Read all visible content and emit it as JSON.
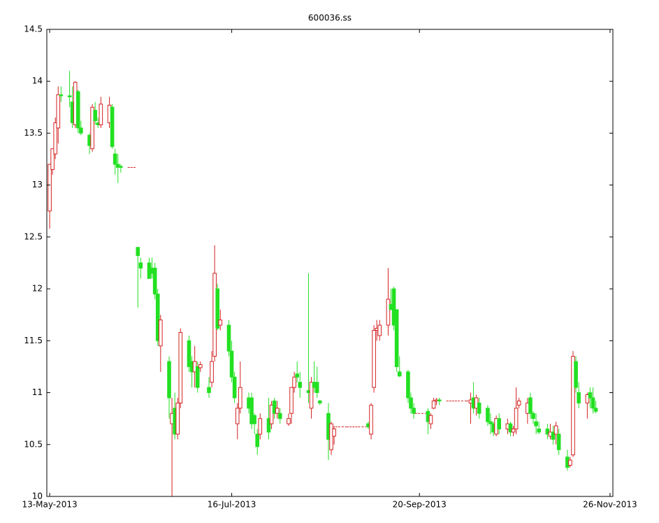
{
  "chart_data": {
    "type": "candlestick",
    "title": "600036.ss",
    "up_color": "#d42020",
    "down_color": "#22e022",
    "xlim": [
      "2013-05-12",
      "2013-11-27"
    ],
    "xticks": [
      {
        "value": "2013-05-13",
        "label": "13-May-2013"
      },
      {
        "value": "2013-07-16",
        "label": "16-Jul-2013"
      },
      {
        "value": "2013-09-20",
        "label": "20-Sep-2013"
      },
      {
        "value": "2013-11-26",
        "label": "26-Nov-2013"
      }
    ],
    "ylim": [
      10,
      14.5
    ],
    "yticks": [
      10,
      10.5,
      11,
      11.5,
      12,
      12.5,
      13,
      13.5,
      14,
      14.5
    ],
    "x": [
      "2013-05-13",
      "2013-05-14",
      "2013-05-15",
      "2013-05-16",
      "2013-05-17",
      "2013-05-20",
      "2013-05-21",
      "2013-05-22",
      "2013-05-23",
      "2013-05-24",
      "2013-05-27",
      "2013-05-28",
      "2013-05-29",
      "2013-05-30",
      "2013-05-31",
      "2013-06-03",
      "2013-06-04",
      "2013-06-05",
      "2013-06-06",
      "2013-06-07",
      "2013-06-10",
      "2013-06-11",
      "2013-06-12",
      "2013-06-13",
      "2013-06-14",
      "2013-06-17",
      "2013-06-18",
      "2013-06-19",
      "2013-06-20",
      "2013-06-21",
      "2013-06-24",
      "2013-06-25",
      "2013-06-26",
      "2013-06-27",
      "2013-06-28",
      "2013-07-01",
      "2013-07-02",
      "2013-07-03",
      "2013-07-04",
      "2013-07-05",
      "2013-07-08",
      "2013-07-09",
      "2013-07-10",
      "2013-07-11",
      "2013-07-12",
      "2013-07-15",
      "2013-07-16",
      "2013-07-17",
      "2013-07-18",
      "2013-07-19",
      "2013-07-22",
      "2013-07-23",
      "2013-07-24",
      "2013-07-25",
      "2013-07-26",
      "2013-07-29",
      "2013-07-30",
      "2013-07-31",
      "2013-08-01",
      "2013-08-02",
      "2013-08-05",
      "2013-08-06",
      "2013-08-07",
      "2013-08-08",
      "2013-08-09",
      "2013-08-12",
      "2013-08-13",
      "2013-08-14",
      "2013-08-15",
      "2013-08-16",
      "2013-08-19",
      "2013-08-20",
      "2013-08-21",
      "2013-08-22",
      "2013-08-23",
      "2013-08-26",
      "2013-08-27",
      "2013-08-28",
      "2013-08-29",
      "2013-08-30",
      "2013-09-02",
      "2013-09-03",
      "2013-09-04",
      "2013-09-05",
      "2013-09-06",
      "2013-09-09",
      "2013-09-10",
      "2013-09-11",
      "2013-09-12",
      "2013-09-13",
      "2013-09-16",
      "2013-09-17",
      "2013-09-18",
      "2013-09-19",
      "2013-09-20",
      "2013-09-23",
      "2013-09-24",
      "2013-09-25",
      "2013-09-26",
      "2013-09-27",
      "2013-09-30",
      "2013-10-01",
      "2013-10-02",
      "2013-10-03",
      "2013-10-04",
      "2013-10-07",
      "2013-10-08",
      "2013-10-09",
      "2013-10-10",
      "2013-10-11",
      "2013-10-14",
      "2013-10-15",
      "2013-10-16",
      "2013-10-17",
      "2013-10-18",
      "2013-10-21",
      "2013-10-22",
      "2013-10-23",
      "2013-10-24",
      "2013-10-25",
      "2013-10-28",
      "2013-10-29",
      "2013-10-30",
      "2013-10-31",
      "2013-11-01",
      "2013-11-04",
      "2013-11-05",
      "2013-11-06",
      "2013-11-07",
      "2013-11-08",
      "2013-11-11",
      "2013-11-12",
      "2013-11-13",
      "2013-11-14",
      "2013-11-15",
      "2013-11-18",
      "2013-11-19",
      "2013-11-20",
      "2013-11-21"
    ],
    "open": [
      12.75,
      13.15,
      13.3,
      13.55,
      13.87,
      13.86,
      13.8,
      13.58,
      13.9,
      13.55,
      13.48,
      13.35,
      13.72,
      13.6,
      13.58,
      13.6,
      13.75,
      13.3,
      13.2,
      13.18,
      13.17,
      13.17,
      13.17,
      12.4,
      12.25,
      12.25,
      12.2,
      12.2,
      11.95,
      11.45,
      11.3,
      10.7,
      10.85,
      10.6,
      10.9,
      11.5,
      11.3,
      11.2,
      11.25,
      11.24,
      11.05,
      11.1,
      11.35,
      12.0,
      11.65,
      11.65,
      11.4,
      11.15,
      10.7,
      10.85,
      10.95,
      10.95,
      10.78,
      10.6,
      10.6,
      10.75,
      10.7,
      10.92,
      10.8,
      10.8,
      10.7,
      10.8,
      11.05,
      11.18,
      11.1,
      11.02,
      10.85,
      11.1,
      11.1,
      10.92,
      10.8,
      10.45,
      10.58,
      10.67,
      10.67,
      10.67,
      10.67,
      10.67,
      10.67,
      10.67,
      10.7,
      10.6,
      11.05,
      11.6,
      11.55,
      11.65,
      11.85,
      12.0,
      11.8,
      11.2,
      11.2,
      10.95,
      10.85,
      10.8,
      10.8,
      10.82,
      10.7,
      10.85,
      10.92,
      10.93,
      10.92,
      10.92,
      10.92,
      10.92,
      10.92,
      10.92,
      10.9,
      10.95,
      10.85,
      10.9,
      10.85,
      10.72,
      10.7,
      10.6,
      10.75,
      10.65,
      10.7,
      10.62,
      10.65,
      10.88,
      10.8,
      10.95,
      10.8,
      10.72,
      10.65,
      10.65,
      10.58,
      10.62,
      10.6,
      10.6,
      10.38,
      10.3,
      10.4,
      11.3,
      11.0,
      10.9,
      11.0,
      10.95,
      10.85
    ],
    "high": [
      13.2,
      13.35,
      13.65,
      13.95,
      13.95,
      14.1,
      13.95,
      14.0,
      13.92,
      13.62,
      13.5,
      13.78,
      13.8,
      13.65,
      13.85,
      13.85,
      13.78,
      13.35,
      13.3,
      13.2,
      13.17,
      13.17,
      13.17,
      12.4,
      12.3,
      12.3,
      12.3,
      12.25,
      12.0,
      11.75,
      11.35,
      10.95,
      11.0,
      10.95,
      11.62,
      11.55,
      11.35,
      11.45,
      11.3,
      11.3,
      11.15,
      11.4,
      12.42,
      12.05,
      11.8,
      11.7,
      11.5,
      11.2,
      10.9,
      11.3,
      11.0,
      11.0,
      10.8,
      10.65,
      10.8,
      10.95,
      10.92,
      10.95,
      10.92,
      10.85,
      10.8,
      11.05,
      11.2,
      11.3,
      11.2,
      12.15,
      11.15,
      11.3,
      11.25,
      10.93,
      10.9,
      10.72,
      10.68,
      10.67,
      10.67,
      10.67,
      10.67,
      10.67,
      10.67,
      10.67,
      10.72,
      10.9,
      11.65,
      11.7,
      11.7,
      12.2,
      12.0,
      12.02,
      11.8,
      11.35,
      11.22,
      11.0,
      10.9,
      10.8,
      10.8,
      10.85,
      10.8,
      10.95,
      10.95,
      10.95,
      10.92,
      10.92,
      10.92,
      10.92,
      10.92,
      10.92,
      11.0,
      11.1,
      10.98,
      10.95,
      10.88,
      10.8,
      10.72,
      10.78,
      10.8,
      10.75,
      10.72,
      10.68,
      11.05,
      10.95,
      10.95,
      11.0,
      10.82,
      10.8,
      10.72,
      10.7,
      10.7,
      10.68,
      10.72,
      10.65,
      10.45,
      10.38,
      11.4,
      11.35,
      11.1,
      11.0,
      11.05,
      11.05,
      10.92
    ],
    "low": [
      12.58,
      13.1,
      13.25,
      13.4,
      13.8,
      13.75,
      13.55,
      13.55,
      13.5,
      13.48,
      13.3,
      13.32,
      13.58,
      13.55,
      13.55,
      13.55,
      13.35,
      13.1,
      13.02,
      13.12,
      13.17,
      13.17,
      13.17,
      11.82,
      12.1,
      12.1,
      12.1,
      11.9,
      11.45,
      11.2,
      10.75,
      10.0,
      10.55,
      10.55,
      10.85,
      11.2,
      11.05,
      11.05,
      11.0,
      11.2,
      10.95,
      11.05,
      11.3,
      11.6,
      11.6,
      11.35,
      11.1,
      10.9,
      10.55,
      10.8,
      10.8,
      10.65,
      10.6,
      10.4,
      10.55,
      10.55,
      10.65,
      10.75,
      10.75,
      10.7,
      10.68,
      10.7,
      11.0,
      11.1,
      10.95,
      10.9,
      10.75,
      11.0,
      10.95,
      10.88,
      10.35,
      10.4,
      10.5,
      10.67,
      10.67,
      10.67,
      10.67,
      10.67,
      10.67,
      10.67,
      10.65,
      10.55,
      11.0,
      11.5,
      11.5,
      11.55,
      11.8,
      11.6,
      11.2,
      11.15,
      10.9,
      10.8,
      10.75,
      10.8,
      10.8,
      10.6,
      10.65,
      10.84,
      10.88,
      10.88,
      10.92,
      10.92,
      10.92,
      10.92,
      10.92,
      10.92,
      10.7,
      10.8,
      10.78,
      10.75,
      10.68,
      10.6,
      10.58,
      10.58,
      10.6,
      10.6,
      10.58,
      10.58,
      10.6,
      10.85,
      10.7,
      10.75,
      10.7,
      10.6,
      10.6,
      10.55,
      10.55,
      10.5,
      10.5,
      10.4,
      10.25,
      10.28,
      10.38,
      11.0,
      10.85,
      10.75,
      10.85,
      10.8,
      10.8
    ],
    "close": [
      13.2,
      13.35,
      13.6,
      13.87,
      13.86,
      13.85,
      13.6,
      13.99,
      13.55,
      13.5,
      13.38,
      13.75,
      13.62,
      13.58,
      13.78,
      13.77,
      13.37,
      13.2,
      13.17,
      13.17,
      13.17,
      13.17,
      13.17,
      12.32,
      12.2,
      12.1,
      12.15,
      11.95,
      11.5,
      11.7,
      10.95,
      10.8,
      10.6,
      10.9,
      11.58,
      11.25,
      11.2,
      11.3,
      11.05,
      11.27,
      11.0,
      11.3,
      12.15,
      11.62,
      11.7,
      11.4,
      11.15,
      10.95,
      10.85,
      11.05,
      10.85,
      10.7,
      10.7,
      10.48,
      10.75,
      10.62,
      10.88,
      10.8,
      10.85,
      10.75,
      10.75,
      11.05,
      11.15,
      11.15,
      11.05,
      11.0,
      11.1,
      11.05,
      11.0,
      10.9,
      10.55,
      10.7,
      10.65,
      10.67,
      10.67,
      10.67,
      10.67,
      10.67,
      10.67,
      10.67,
      10.67,
      10.88,
      11.6,
      11.62,
      11.65,
      11.9,
      11.8,
      11.65,
      11.25,
      11.16,
      10.95,
      10.85,
      10.8,
      10.8,
      10.8,
      10.72,
      10.78,
      10.92,
      10.93,
      10.92,
      10.92,
      10.92,
      10.92,
      10.92,
      10.92,
      10.92,
      10.93,
      10.85,
      10.95,
      10.8,
      10.72,
      10.7,
      10.62,
      10.75,
      10.65,
      10.7,
      10.62,
      10.65,
      10.85,
      10.92,
      10.9,
      10.8,
      10.75,
      10.68,
      10.62,
      10.6,
      10.62,
      10.55,
      10.68,
      10.45,
      10.28,
      10.35,
      11.35,
      11.05,
      10.9,
      10.98,
      10.95,
      10.85,
      10.82
    ]
  }
}
